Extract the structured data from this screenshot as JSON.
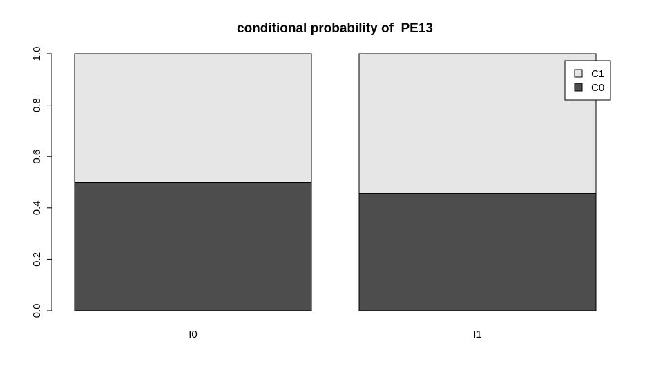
{
  "chart_data": {
    "type": "bar",
    "stacked": true,
    "title": "conditional probability of  PE13",
    "xlabel": "",
    "ylabel": "",
    "categories": [
      "I0",
      "I1"
    ],
    "series": [
      {
        "name": "C0",
        "values": [
          0.5,
          0.457
        ],
        "color": "#4d4d4d"
      },
      {
        "name": "C1",
        "values": [
          0.5,
          0.543
        ],
        "color": "#e6e6e6"
      }
    ],
    "ylim": [
      0,
      1
    ],
    "yticks": [
      "0.0",
      "0.2",
      "0.4",
      "0.6",
      "0.8",
      "1.0"
    ],
    "grid": false,
    "legend_position": "top-right",
    "legend_entries": [
      {
        "label": "C1",
        "color": "#e6e6e6"
      },
      {
        "label": "C0",
        "color": "#4d4d4d"
      }
    ]
  }
}
